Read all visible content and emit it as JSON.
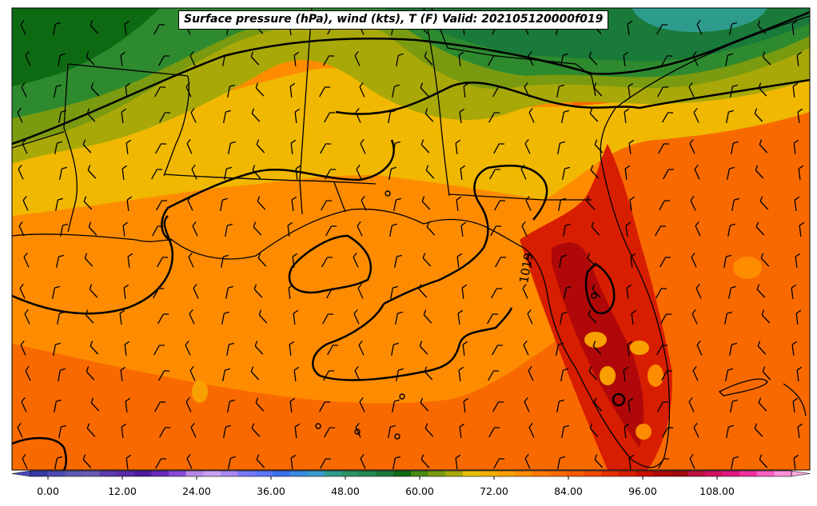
{
  "title": "Surface pressure (hPa), wind (kts), T (F) Valid: 202105120000f019",
  "contour_label": "1019",
  "colorbar": {
    "ticks": [
      "0.00",
      "12.00",
      "24.00",
      "36.00",
      "48.00",
      "60.00",
      "72.00",
      "84.00",
      "96.00",
      "108.00"
    ],
    "colors": [
      "#3a3aa8",
      "#4d4ab0",
      "#5e58b2",
      "#6a5ab4",
      "#5b3ab0",
      "#5a2aa8",
      "#4f1aa0",
      "#6b2ac0",
      "#8a4ad8",
      "#b888e8",
      "#c8a0f0",
      "#a888f0",
      "#7878f8",
      "#5a78f8",
      "#3a70f0",
      "#3a8ae0",
      "#3a9ad0",
      "#2e9c8c",
      "#2a9468",
      "#1f8a50",
      "#1a7a3a",
      "#0e6a12",
      "#4a8a14",
      "#7a9a10",
      "#a8a808",
      "#e8c000",
      "#f0b000",
      "#f8a000",
      "#ff8c00",
      "#ff7800",
      "#ff6a00",
      "#f85a00",
      "#f04a00",
      "#e83000",
      "#d81e00",
      "#c81000",
      "#b00808",
      "#a00a10",
      "#b81040",
      "#d01060",
      "#e01880",
      "#f030a0",
      "#f860c0",
      "#ff90d8"
    ]
  },
  "legend_colors": {
    "dark_green": "#0e6a12",
    "green": "#2a8a2a",
    "olive": "#7a9a10",
    "yellow": "#f0b800",
    "orange": "#ff8c00",
    "dark_orange": "#f85a00",
    "red": "#d81e00",
    "dark_red": "#b00808"
  }
}
